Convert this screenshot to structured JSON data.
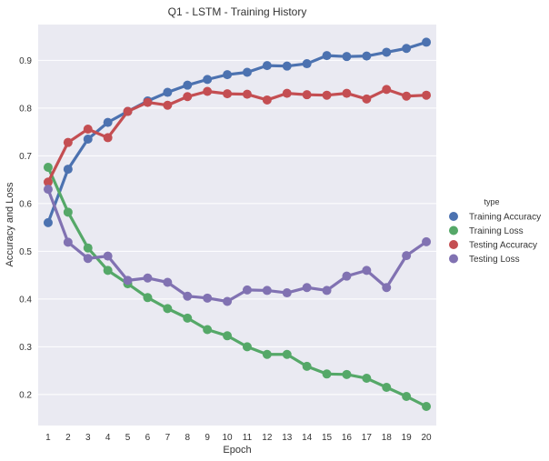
{
  "chart_data": {
    "type": "line",
    "title": "Q1 - LSTM - Training History",
    "xlabel": "Epoch",
    "ylabel": "Accuracy and Loss",
    "categories": [
      "1",
      "2",
      "3",
      "4",
      "5",
      "6",
      "7",
      "8",
      "9",
      "10",
      "11",
      "12",
      "13",
      "14",
      "15",
      "16",
      "17",
      "18",
      "19",
      "20"
    ],
    "ylim": [
      0.135,
      0.975
    ],
    "yticks": [
      "0.2",
      "0.3",
      "0.4",
      "0.5",
      "0.6",
      "0.7",
      "0.8",
      "0.9"
    ],
    "grid": true,
    "legend": {
      "title": "type",
      "placement": "right"
    },
    "series": [
      {
        "name": "Training Accuracy",
        "color": "#4C72B0",
        "values": [
          0.56,
          0.672,
          0.735,
          0.77,
          0.793,
          0.815,
          0.833,
          0.848,
          0.86,
          0.87,
          0.875,
          0.889,
          0.888,
          0.893,
          0.91,
          0.908,
          0.909,
          0.917,
          0.925,
          0.938
        ]
      },
      {
        "name": "Training Loss",
        "color": "#55A868",
        "values": [
          0.676,
          0.582,
          0.507,
          0.46,
          0.432,
          0.403,
          0.38,
          0.36,
          0.336,
          0.323,
          0.3,
          0.284,
          0.284,
          0.259,
          0.243,
          0.242,
          0.234,
          0.215,
          0.196,
          0.175
        ]
      },
      {
        "name": "Testing Accuracy",
        "color": "#C44E52",
        "values": [
          0.645,
          0.728,
          0.756,
          0.738,
          0.793,
          0.812,
          0.806,
          0.824,
          0.835,
          0.83,
          0.829,
          0.817,
          0.831,
          0.828,
          0.827,
          0.831,
          0.819,
          0.839,
          0.825,
          0.827
        ]
      },
      {
        "name": "Testing Loss",
        "color": "#8172B2",
        "values": [
          0.63,
          0.519,
          0.485,
          0.49,
          0.439,
          0.444,
          0.435,
          0.406,
          0.402,
          0.395,
          0.419,
          0.418,
          0.413,
          0.424,
          0.418,
          0.448,
          0.46,
          0.424,
          0.491,
          0.52
        ]
      }
    ]
  }
}
